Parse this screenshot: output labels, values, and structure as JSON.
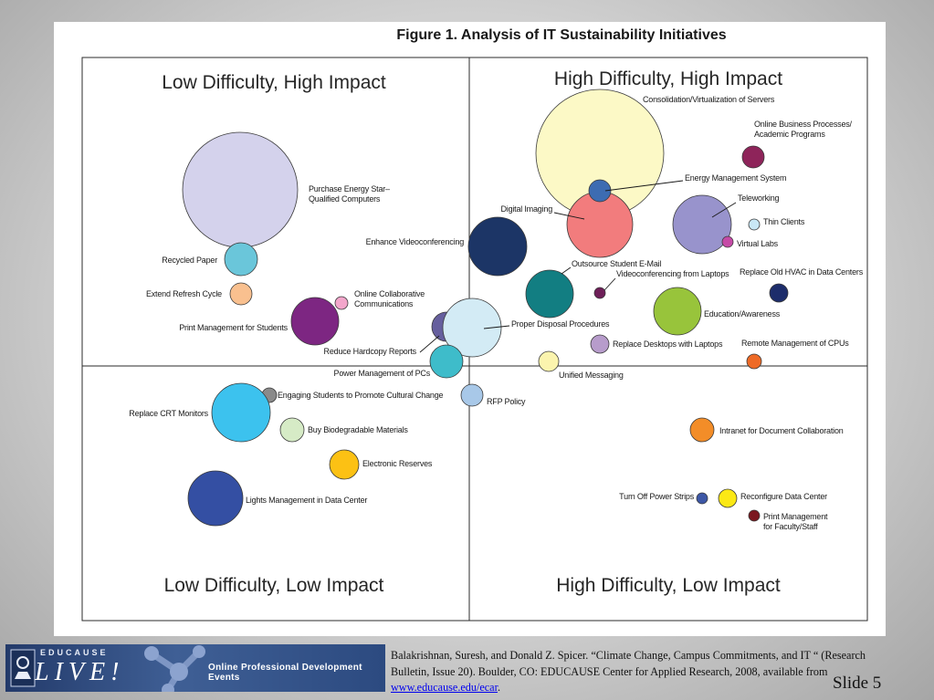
{
  "chart_data": {
    "type": "bubble",
    "title": "Figure 1. Analysis of IT Sustainability Initiatives",
    "quadrants": {
      "top_left": "Low Difficulty, High Impact",
      "top_right": "High Difficulty, High Impact",
      "bottom_left": "Low Difficulty, Low Impact",
      "bottom_right": "High Difficulty, Low Impact"
    },
    "points": [
      {
        "name": "Purchase Energy Star–\nQualified Computers",
        "color": "#d4d2ec"
      },
      {
        "name": "Recycled Paper",
        "color": "#6ac6da"
      },
      {
        "name": "Extend Refresh Cycle",
        "color": "#f9c08f"
      },
      {
        "name": "Print Management for Students",
        "color": "#7d2682"
      },
      {
        "name": "Online Collaborative\nCommunications",
        "color": "#f3a6cb"
      },
      {
        "name": "Reduce Hardcopy Reports",
        "color": "#665f9e"
      },
      {
        "name": "Proper Disposal Procedures",
        "color": "#d3ebf5"
      },
      {
        "name": "Power Management of PCs",
        "color": "#3ebcca"
      },
      {
        "name": "Enhance Videoconferencing",
        "color": "#1c3566"
      },
      {
        "name": "Consolidation/Virtualization of Servers",
        "color": "#fcf9c6"
      },
      {
        "name": "Digital Imaging",
        "color": "#f27c7d"
      },
      {
        "name": "Energy Management System",
        "color": "#3d6cb2"
      },
      {
        "name": "Online Business Processes/\nAcademic Programs",
        "color": "#8e245a"
      },
      {
        "name": "Teleworking",
        "color": "#9893cc"
      },
      {
        "name": "Thin Clients",
        "color": "#c9e8f6"
      },
      {
        "name": "Virtual Labs",
        "color": "#c54aa6"
      },
      {
        "name": "Outsource Student E-Mail",
        "color": "#127e82"
      },
      {
        "name": "Videoconferencing from Laptops",
        "color": "#6e1f58"
      },
      {
        "name": "Replace Old HVAC in Data Centers",
        "color": "#1d2d6b"
      },
      {
        "name": "Education/Awareness",
        "color": "#98c43b"
      },
      {
        "name": "Replace Desktops with Laptops",
        "color": "#b79ccb"
      },
      {
        "name": "Remote Management of CPUs",
        "color": "#ee6a26"
      },
      {
        "name": "Unified Messaging",
        "color": "#fbf4ae"
      },
      {
        "name": "RFP Policy",
        "color": "#a8c8e8"
      },
      {
        "name": "Engaging Students to Promote Cultural Change",
        "color": "#8a8a8a"
      },
      {
        "name": "Replace CRT Monitors",
        "color": "#3cc2ee"
      },
      {
        "name": "Buy Biodegradable Materials",
        "color": "#d6ebc6"
      },
      {
        "name": "Electronic Reserves",
        "color": "#fcc114"
      },
      {
        "name": "Lights Management in Data Center",
        "color": "#344fa3"
      },
      {
        "name": "Intranet for Document Collaboration",
        "color": "#f38d28"
      },
      {
        "name": "Turn Off Power Strips",
        "color": "#3d57a6"
      },
      {
        "name": "Reconfigure Data Center",
        "color": "#fbe815"
      },
      {
        "name": "Print Management\nfor Faculty/Staff",
        "color": "#7b1820"
      }
    ]
  },
  "footer": {
    "banner_brand_top": "EDUCAUSE",
    "banner_brand_main": "LIVE!",
    "banner_tagline": "Online Professional Development Events",
    "citation_text": "Balakrishnan, Suresh, and Donald Z. Spicer.  “Climate Change, Campus Commitments, and IT “ (Research Bulletin, Issue 20).  Boulder, CO: EDUCAUSE Center for Applied Research, 2008, available from ",
    "citation_link": "www.educause.edu/ecar",
    "citation_end": ".",
    "slide_number": "Slide  5"
  }
}
